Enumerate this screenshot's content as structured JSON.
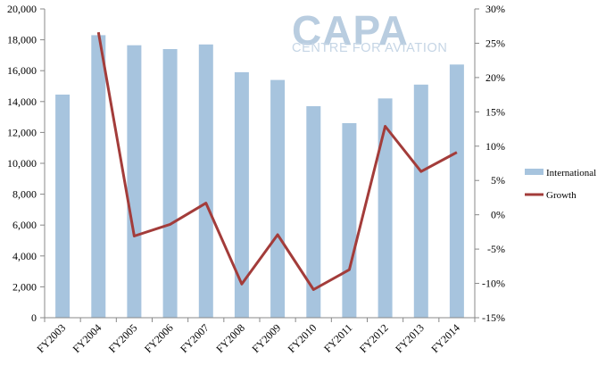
{
  "watermark": {
    "logo": "CAPA",
    "tagline": "CENTRE FOR AVIATION"
  },
  "colors": {
    "bar": "#a7c4de",
    "line": "#a33c3a",
    "axis": "#888888"
  },
  "chart_data": {
    "type": "bar",
    "title": "",
    "categories": [
      "FY2003",
      "FY2004",
      "FY2005",
      "FY2006",
      "FY2007",
      "FY2008",
      "FY2009",
      "FY2010",
      "FY2011",
      "FY2012",
      "FY2013",
      "FY2014"
    ],
    "series": [
      {
        "name": "International",
        "type": "bar",
        "axis": "left",
        "values": [
          14450,
          18300,
          17650,
          17400,
          17700,
          15900,
          15400,
          13700,
          12600,
          14200,
          15100,
          16400
        ]
      },
      {
        "name": "Growth",
        "type": "line",
        "axis": "right",
        "unit": "%",
        "values": [
          null,
          26.6,
          -3.1,
          -1.4,
          1.7,
          -10.1,
          -2.9,
          -10.9,
          -8.0,
          12.9,
          6.3,
          9.1
        ]
      }
    ],
    "y_left": {
      "min": 0,
      "max": 20000,
      "ticks": [
        "0",
        "2,000",
        "4,000",
        "6,000",
        "8,000",
        "10,000",
        "12,000",
        "14,000",
        "16,000",
        "18,000",
        "20,000"
      ]
    },
    "y_right": {
      "min": -15,
      "max": 30,
      "ticks": [
        "-15%",
        "-10%",
        "-5%",
        "0%",
        "5%",
        "10%",
        "15%",
        "20%",
        "25%",
        "30%"
      ]
    },
    "grid": false,
    "legend": {
      "placement": "right",
      "entries": [
        "International",
        "Growth"
      ]
    }
  }
}
